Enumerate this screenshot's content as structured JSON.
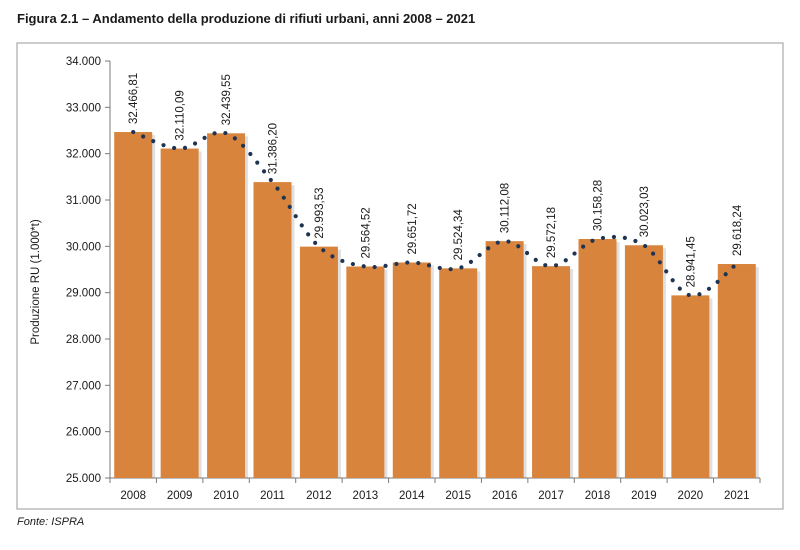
{
  "figure": {
    "title": "Figura 2.1 – Andamento della produzione di rifiuti urbani, anni 2008 – 2021",
    "source": "Fonte: ISPRA"
  },
  "colors": {
    "bar": "#d8843c",
    "dotted_trend": "#1f3452",
    "frame": "#9a9a9a",
    "axis": "#7a7a7a"
  },
  "chart_data": {
    "type": "bar",
    "ylabel": "Produzione RU (1.000*t)",
    "ylim": [
      25000,
      34000
    ],
    "yticks": [
      25000,
      26000,
      27000,
      28000,
      29000,
      30000,
      31000,
      32000,
      33000,
      34000
    ],
    "ytick_labels": [
      "25.000",
      "26.000",
      "27.000",
      "28.000",
      "29.000",
      "30.000",
      "31.000",
      "32.000",
      "33.000",
      "34.000"
    ],
    "grid": false,
    "categories": [
      "2008",
      "2009",
      "2010",
      "2011",
      "2012",
      "2013",
      "2014",
      "2015",
      "2016",
      "2017",
      "2018",
      "2019",
      "2020",
      "2021"
    ],
    "values": [
      32466.81,
      32110.09,
      32439.55,
      31386.2,
      29993.53,
      29564.52,
      29651.72,
      29524.34,
      30112.08,
      29572.18,
      30158.28,
      30023.03,
      28941.45,
      29618.24
    ],
    "data_labels": [
      "32.466,81",
      "32.110,09",
      "32.439,55",
      "31.386,20",
      "29.993,53",
      "29.564,52",
      "29.651,72",
      "29.524,34",
      "30.112,08",
      "29.572,18",
      "30.158,28",
      "30.023,03",
      "28.941,45",
      "29.618,24"
    ],
    "trend_line": "dotted smoothed line through bar tops"
  }
}
